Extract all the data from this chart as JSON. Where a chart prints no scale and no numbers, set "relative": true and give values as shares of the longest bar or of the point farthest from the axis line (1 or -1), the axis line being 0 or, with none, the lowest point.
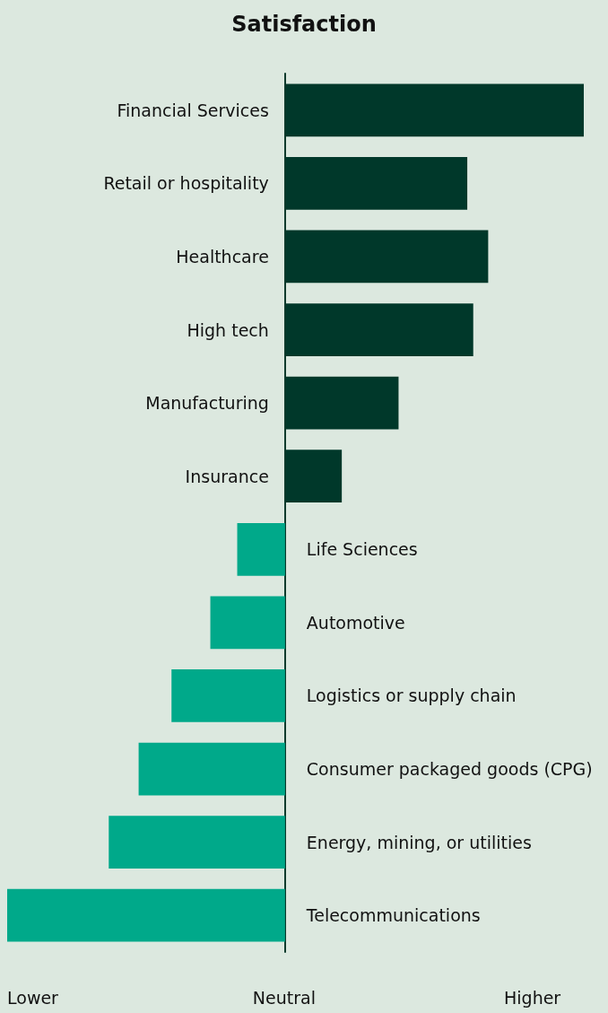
{
  "chart_data": {
    "type": "bar",
    "orientation": "horizontal",
    "relative": true,
    "title": "Satisfaction",
    "categories": [
      "Financial Services",
      "Retail or hospitality",
      "Healthcare",
      "High tech",
      "Manufacturing",
      "Insurance",
      "Life Sciences",
      "Automotive",
      "Logistics or supply chain",
      "Consumer packaged goods (CPG)",
      "Energy, mining, or utilities",
      "Telecommunications"
    ],
    "values": [
      1,
      0.61,
      0.68,
      0.63,
      0.38,
      0.19,
      -0.16,
      -0.25,
      -0.38,
      -0.49,
      -0.59,
      -0.93
    ],
    "colors": [
      "#00382a",
      "#00382a",
      "#00382a",
      "#00382a",
      "#00382a",
      "#00382a",
      "#00a98a",
      "#00a98a",
      "#00a98a",
      "#00a98a",
      "#00a98a",
      "#00a98a"
    ],
    "annotations": [
      "Lower",
      "Neutral",
      "Higher"
    ]
  }
}
